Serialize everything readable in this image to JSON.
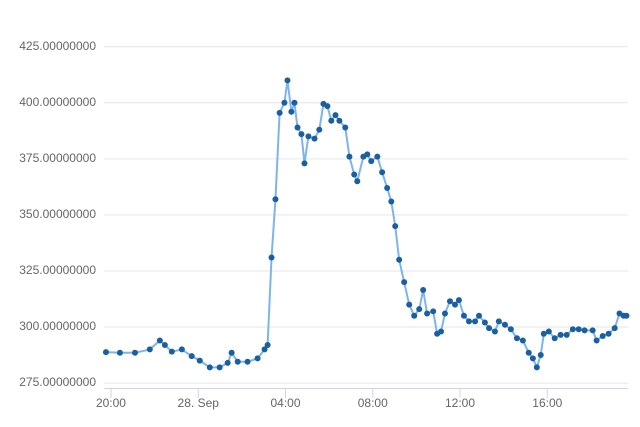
{
  "chart_data": {
    "type": "line",
    "x": [
      -0.23,
      0.41,
      1.1,
      1.78,
      2.24,
      2.47,
      2.79,
      3.25,
      3.7,
      4.07,
      4.53,
      4.98,
      5.35,
      5.53,
      5.81,
      6.26,
      6.72,
      7.04,
      7.18,
      7.36,
      7.54,
      7.73,
      7.95,
      8.09,
      8.27,
      8.41,
      8.55,
      8.73,
      8.87,
      9.05,
      9.33,
      9.55,
      9.74,
      9.92,
      10.1,
      10.29,
      10.47,
      10.74,
      10.93,
      11.15,
      11.29,
      11.57,
      11.75,
      11.93,
      12.21,
      12.43,
      12.66,
      12.85,
      13.03,
      13.21,
      13.44,
      13.67,
      13.9,
      14.13,
      14.31,
      14.49,
      14.77,
      14.95,
      15.13,
      15.31,
      15.54,
      15.77,
      15.95,
      16.18,
      16.41,
      16.69,
      16.87,
      17.14,
      17.33,
      17.6,
      17.78,
      18.06,
      18.33,
      18.61,
      18.88,
      19.15,
      19.34,
      19.52,
      19.7,
      19.84,
      20.07,
      20.34,
      20.61,
      20.89,
      21.17,
      21.44,
      21.71,
      22.08,
      22.26,
      22.54,
      22.81,
      23.09,
      23.31,
      23.5,
      23.63
    ],
    "series": [
      {
        "color": "#7cb5ec",
        "marker_color": "#1a5fa0",
        "values": [
          288.8,
          288.5,
          288.5,
          290,
          294,
          292,
          289,
          290,
          287,
          285,
          282,
          282,
          284,
          288.5,
          284.5,
          284.5,
          286,
          290,
          292,
          331,
          357,
          395.5,
          400,
          410,
          396,
          400,
          389,
          386,
          373,
          385,
          384,
          388,
          399.5,
          398.5,
          392,
          394.5,
          392,
          389,
          376,
          368,
          365,
          376,
          377,
          374,
          376,
          369,
          362,
          356,
          345,
          330,
          320,
          310,
          305,
          308,
          316.5,
          306,
          307,
          297,
          298,
          306,
          311.5,
          310,
          312,
          305,
          302.5,
          302.5,
          305,
          302,
          299.5,
          298,
          302.5,
          301,
          299,
          295,
          294,
          288.5,
          286,
          282,
          287.5,
          297,
          298,
          295,
          296.5,
          296.5,
          299,
          299,
          298.5,
          298.5,
          294,
          296,
          297,
          299.5,
          306,
          305,
          305
        ]
      }
    ],
    "xlim": [
      -0.32,
      23.7
    ],
    "xticks": [
      {
        "value": 0,
        "label": "20:00"
      },
      {
        "value": 4,
        "label": "28. Sep"
      },
      {
        "value": 8,
        "label": "04:00"
      },
      {
        "value": 12,
        "label": "08:00"
      },
      {
        "value": 16,
        "label": "12:00"
      },
      {
        "value": 20,
        "label": "16:00"
      }
    ],
    "ylim": [
      272.8,
      428
    ],
    "yticks": [
      {
        "value": 275,
        "label": "275.00000000"
      },
      {
        "value": 300,
        "label": "300.00000000"
      },
      {
        "value": 325,
        "label": "325.00000000"
      },
      {
        "value": 350,
        "label": "350.00000000"
      },
      {
        "value": 375,
        "label": "375.00000000"
      },
      {
        "value": 400,
        "label": "400.00000000"
      },
      {
        "value": 425,
        "label": "425.00000000"
      }
    ],
    "grid": true
  }
}
